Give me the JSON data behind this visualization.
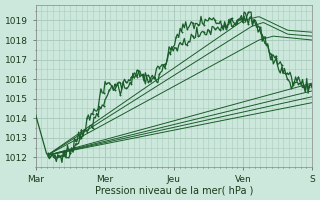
{
  "background_color": "#cce8dc",
  "grid_color": "#aaccbb",
  "line_color": "#1a5c2a",
  "xlabel": "Pression niveau de la mer( hPa )",
  "ylim": [
    1011.5,
    1019.8
  ],
  "yticks": [
    1012,
    1013,
    1014,
    1015,
    1016,
    1017,
    1018,
    1019
  ],
  "xtick_labels": [
    "Mar",
    "Mer",
    "Jeu",
    "Ven",
    "S"
  ],
  "xtick_positions": [
    0,
    48,
    96,
    144,
    192
  ],
  "num_points": 200,
  "figsize": [
    3.2,
    2.0
  ],
  "dpi": 100,
  "origin_x": 8,
  "origin_y": 1012.1
}
